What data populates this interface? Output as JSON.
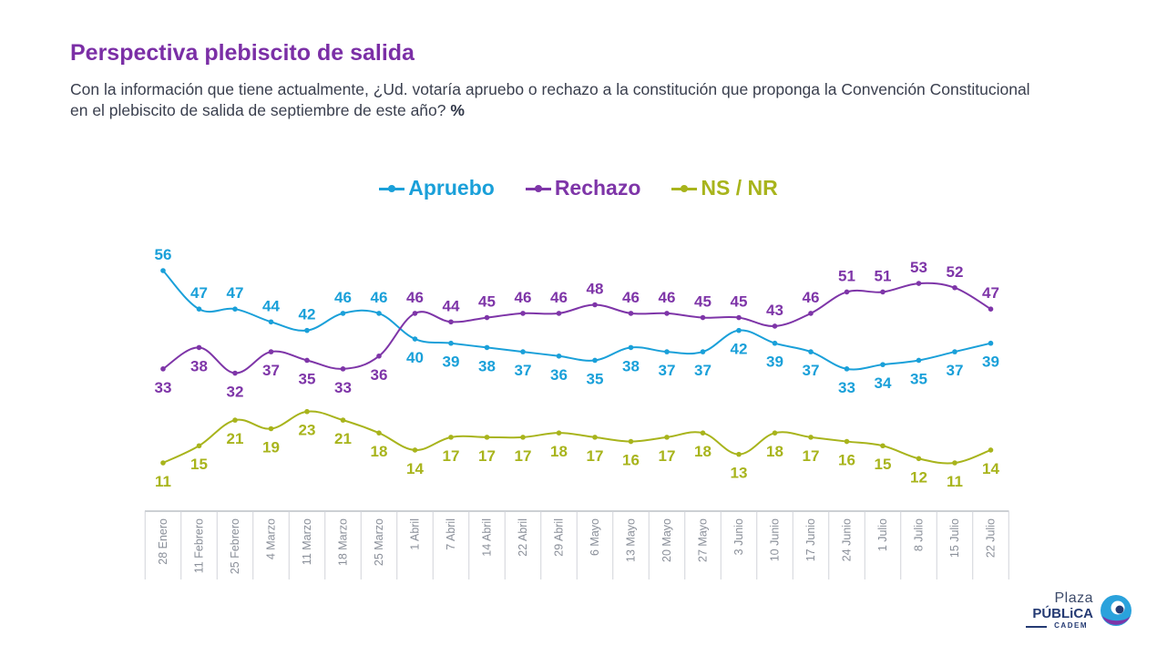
{
  "header": {
    "title": "Perspectiva plebiscito de salida",
    "subtitle": "Con la información que tiene actualmente, ¿Ud. votaría apruebo o rechazo a la constitución que proponga la Convención Constitucional en el plebiscito de salida de septiembre de este año?",
    "unit": "%"
  },
  "logo": {
    "line1": "Plaza",
    "line2": "PÚBLiCA",
    "line3": "CADEM"
  },
  "chart_data": {
    "type": "line",
    "legend_position": "top-center",
    "grid": false,
    "ylim": [
      0,
      60
    ],
    "categories": [
      "28 Enero",
      "11 Febrero",
      "25 Febrero",
      "4 Marzo",
      "11 Marzo",
      "18 Marzo",
      "25 Marzo",
      "1 Abril",
      "7 Abril",
      "14 Abril",
      "22 Abril",
      "29 Abril",
      "6 Mayo",
      "13 Mayo",
      "20 Mayo",
      "27 Mayo",
      "3 Junio",
      "10 Junio",
      "17 Junio",
      "24 Junio",
      "1 Julio",
      "8 Julio",
      "15 Julio",
      "22 Julio"
    ],
    "series": [
      {
        "name": "Apruebo",
        "color": "#1aa0d9",
        "values": [
          56,
          47,
          47,
          44,
          42,
          46,
          46,
          40,
          39,
          38,
          37,
          36,
          35,
          38,
          37,
          37,
          42,
          39,
          37,
          33,
          34,
          35,
          37,
          39
        ],
        "label_pos": [
          "a",
          "a",
          "a",
          "a",
          "a",
          "a",
          "a",
          "b",
          "b",
          "b",
          "b",
          "b",
          "b",
          "b",
          "b",
          "b",
          "b",
          "b",
          "b",
          "b",
          "b",
          "b",
          "b",
          "b"
        ]
      },
      {
        "name": "Rechazo",
        "color": "#7e35a8",
        "values": [
          33,
          38,
          32,
          37,
          35,
          33,
          36,
          46,
          44,
          45,
          46,
          46,
          48,
          46,
          46,
          45,
          45,
          43,
          46,
          51,
          51,
          53,
          52,
          47
        ],
        "label_pos": [
          "b",
          "b",
          "b",
          "b",
          "b",
          "b",
          "b",
          "a",
          "a",
          "a",
          "a",
          "a",
          "a",
          "a",
          "a",
          "a",
          "a",
          "a",
          "a",
          "a",
          "a",
          "a",
          "a",
          "a"
        ]
      },
      {
        "name": "NS / NR",
        "color": "#a8b41c",
        "values": [
          11,
          15,
          21,
          19,
          23,
          21,
          18,
          14,
          17,
          17,
          17,
          18,
          17,
          16,
          17,
          18,
          13,
          18,
          17,
          16,
          15,
          12,
          11,
          14
        ],
        "label_pos": [
          "b",
          "b",
          "b",
          "b",
          "b",
          "b",
          "b",
          "b",
          "b",
          "b",
          "b",
          "b",
          "b",
          "b",
          "b",
          "b",
          "b",
          "b",
          "b",
          "b",
          "b",
          "b",
          "b",
          "b"
        ]
      }
    ]
  }
}
